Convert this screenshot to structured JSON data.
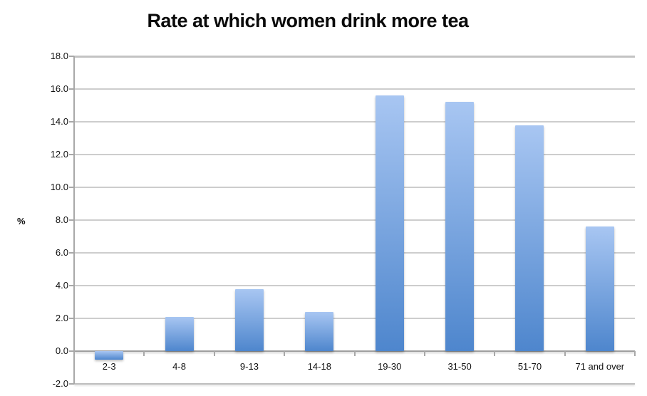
{
  "chart_data": {
    "type": "bar",
    "title": "Rate at which women drink more tea",
    "categories": [
      "2-3",
      "4-8",
      "9-13",
      "14-18",
      "19-30",
      "31-50",
      "51-70",
      "71 and over"
    ],
    "values": [
      -0.5,
      2.1,
      3.8,
      2.4,
      15.6,
      15.2,
      13.8,
      7.6
    ],
    "xlabel": "",
    "ylabel": "%",
    "ylim": [
      -2.0,
      18.0
    ],
    "ytick_step": 2.0,
    "ytick_labels": [
      "18.0",
      "16.0",
      "14.0",
      "12.0",
      "10.0",
      "8.0",
      "6.0",
      "4.0",
      "2.0",
      "0.0",
      "-2.0"
    ],
    "grid": true,
    "legend": "none",
    "colors": {
      "bar_gradient_top": "#a8c6f2",
      "bar_gradient_bottom": "#4e86cd",
      "gridline": "#cdcdcd",
      "zero_line": "#9e9e9e",
      "text": "#111111",
      "title_text": "#0a0a0a"
    }
  }
}
